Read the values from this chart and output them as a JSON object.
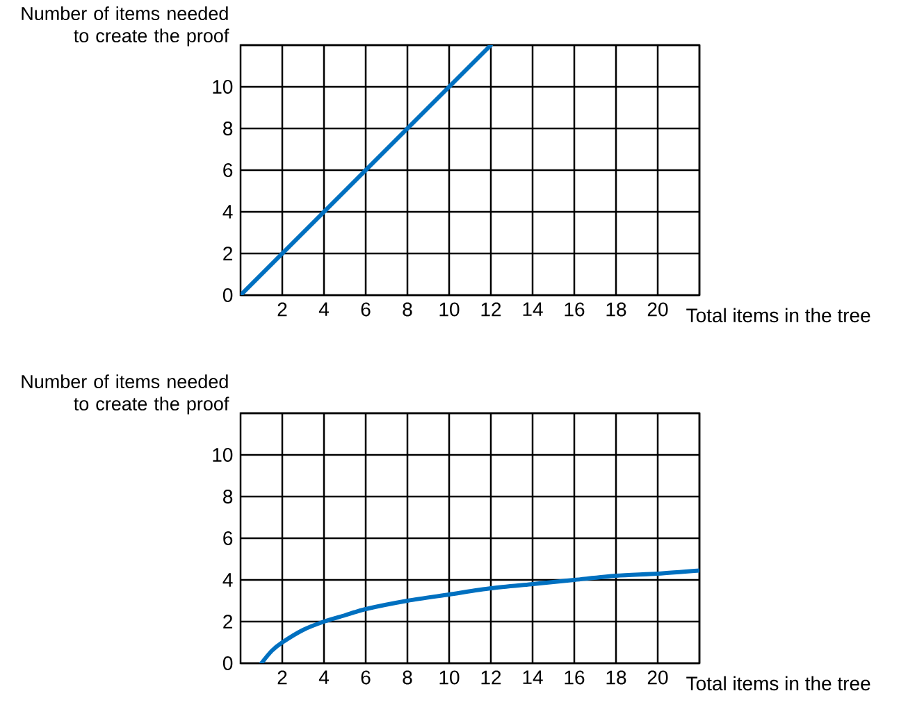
{
  "chart_data": [
    {
      "type": "line",
      "xlabel": "Total items in the tree",
      "ylabel": "Number of items needed to create the proof",
      "xlim": [
        0,
        22
      ],
      "ylim": [
        0,
        12
      ],
      "xticks": [
        2,
        4,
        6,
        8,
        10,
        12,
        14,
        16,
        18,
        20
      ],
      "yticks": [
        0,
        2,
        4,
        6,
        8,
        10
      ],
      "grid": true,
      "series": [
        {
          "color": "#0070c0",
          "x": [
            0,
            12
          ],
          "values": [
            0,
            12
          ]
        }
      ]
    },
    {
      "type": "line",
      "xlabel": "Total items in the tree",
      "ylabel": "Number of items needed to create the proof",
      "xlim": [
        0,
        22
      ],
      "ylim": [
        0,
        12
      ],
      "xticks": [
        2,
        4,
        6,
        8,
        10,
        12,
        14,
        16,
        18,
        20
      ],
      "yticks": [
        0,
        2,
        4,
        6,
        8,
        10
      ],
      "grid": true,
      "series": [
        {
          "color": "#0070c0",
          "x": [
            1,
            1.5,
            2,
            3,
            4,
            5,
            6,
            8,
            10,
            12,
            14,
            16,
            18,
            20,
            22
          ],
          "values": [
            0,
            0.6,
            1.0,
            1.6,
            2.0,
            2.3,
            2.6,
            3.0,
            3.3,
            3.6,
            3.8,
            4.0,
            4.2,
            4.3,
            4.45
          ]
        }
      ]
    }
  ]
}
